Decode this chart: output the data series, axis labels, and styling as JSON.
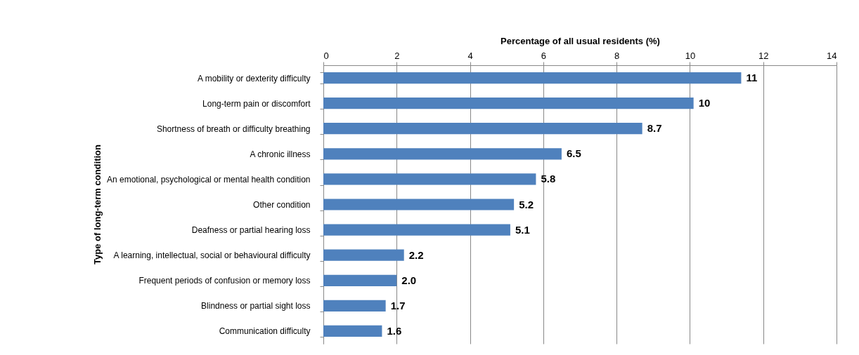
{
  "chart_data": {
    "type": "bar",
    "orientation": "horizontal",
    "xlabel": "Percentage of all usual residents (%)",
    "ylabel": "Type of long-term condition",
    "categories": [
      "A mobility or dexterity difficulty",
      "Long-term pain or discomfort",
      "Shortness of breath or difficulty breathing",
      "A chronic illness",
      "An emotional, psychological or mental health condition",
      "Other condition",
      "Deafness or partial hearing loss",
      "A learning, intellectual, social or behavioural difficulty",
      "Frequent periods of confusion or memory loss",
      "Blindness or partial sight loss",
      "Communication difficulty"
    ],
    "values": [
      11.4,
      10.1,
      8.7,
      6.5,
      5.8,
      5.2,
      5.1,
      2.2,
      2.0,
      1.7,
      1.6
    ],
    "value_labels": [
      "11",
      "10",
      "8.7",
      "6.5",
      "5.8",
      "5.2",
      "5.1",
      "2.2",
      "2.0",
      "1.7",
      "1.6"
    ],
    "color": "#4f81bd",
    "xlim": [
      0,
      14
    ],
    "xticks": [
      0,
      2,
      4,
      6,
      8,
      10,
      12,
      14
    ],
    "grid": "x"
  }
}
